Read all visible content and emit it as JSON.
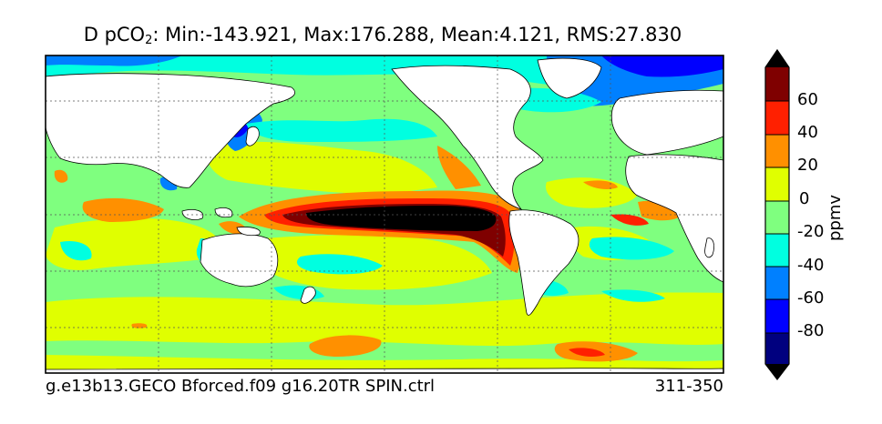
{
  "title": {
    "prefix": "D pCO",
    "subscript": "2",
    "stats": ": Min:-143.921, Max:176.288, Mean:4.121, RMS:27.830"
  },
  "footer": {
    "run_name": "g.e13b13.GECO Bforced.f09 g16.20TR SPIN.ctrl",
    "years": "311-350"
  },
  "colorbar": {
    "unit": "ppmv",
    "tick_labels": [
      "60",
      "40",
      "20",
      "0",
      "-20",
      "-40",
      "-60",
      "-80"
    ],
    "colors": [
      "#00007f",
      "#0000ff",
      "#0080ff",
      "#00ffe0",
      "#7fff7f",
      "#e0ff00",
      "#ff9000",
      "#ff2000",
      "#7f0000"
    ]
  }
}
